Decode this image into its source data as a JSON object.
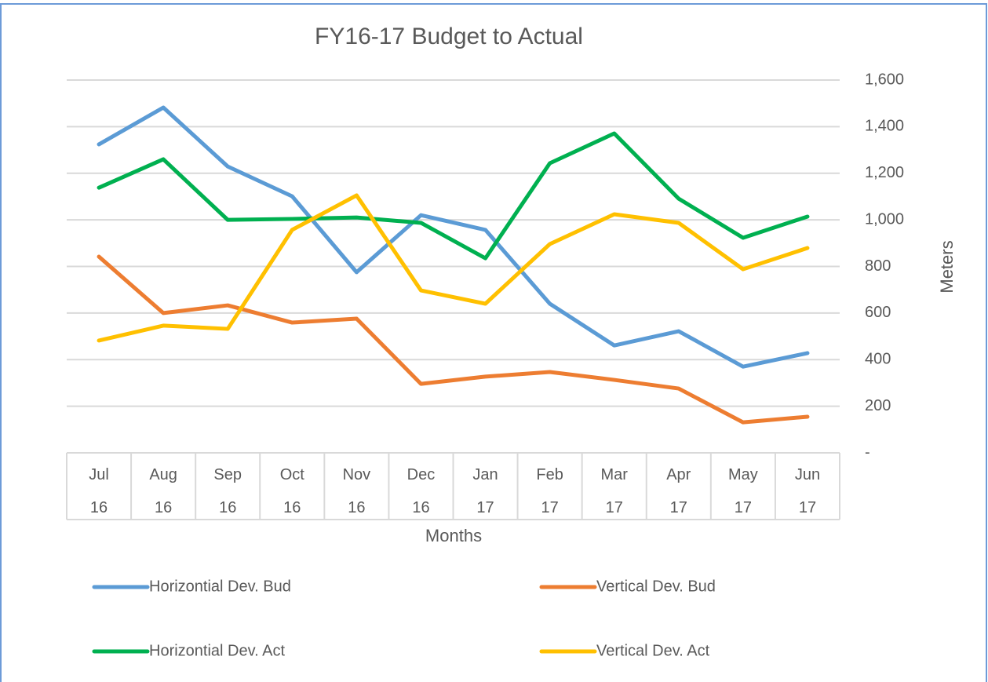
{
  "chart_data": {
    "type": "line",
    "title": "FY16-17 Budget to Actual",
    "x_label": "Months",
    "y_label": "Meters",
    "categories": [
      "Jul 16",
      "Aug 16",
      "Sep 16",
      "Oct 16",
      "Nov 16",
      "Dec 16",
      "Jan 17",
      "Feb 17",
      "Mar 17",
      "Apr 17",
      "May 17",
      "Jun 17"
    ],
    "series": [
      {
        "name": "Horizontial Dev. Bud",
        "color": "#5b9bd5",
        "values": [
          1324,
          1482,
          1229,
          1101,
          775,
          1020,
          957,
          640,
          461,
          522,
          370,
          428
        ]
      },
      {
        "name": "Vertical Dev. Bud",
        "color": "#ed7d31",
        "values": [
          842,
          600,
          633,
          559,
          576,
          296,
          327,
          347,
          313,
          276,
          131,
          155
        ]
      },
      {
        "name": "Horizontial Dev. Act",
        "color": "#00b050",
        "values": [
          1138,
          1260,
          1000,
          1004,
          1010,
          987,
          835,
          1243,
          1371,
          1091,
          923,
          1014
        ]
      },
      {
        "name": "Vertical Dev. Act",
        "color": "#ffc000",
        "values": [
          482,
          546,
          532,
          957,
          1105,
          697,
          640,
          896,
          1024,
          987,
          788,
          879
        ]
      }
    ],
    "ylim": [
      0,
      1600
    ],
    "yticks": [
      {
        "value": 0,
        "label": "-"
      },
      200,
      400,
      600,
      800,
      {
        "value": 1000,
        "label": "1,000"
      },
      {
        "value": 1200,
        "label": "1,200"
      },
      {
        "value": 1400,
        "label": "1,400"
      },
      {
        "value": 1600,
        "label": "1,600"
      }
    ],
    "grid": true,
    "legend": "bottom"
  }
}
